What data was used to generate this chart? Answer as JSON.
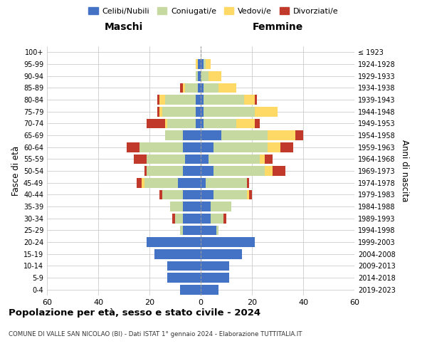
{
  "age_groups": [
    "0-4",
    "5-9",
    "10-14",
    "15-19",
    "20-24",
    "25-29",
    "30-34",
    "35-39",
    "40-44",
    "45-49",
    "50-54",
    "55-59",
    "60-64",
    "65-69",
    "70-74",
    "75-79",
    "80-84",
    "85-89",
    "90-94",
    "95-99",
    "100+"
  ],
  "birth_years": [
    "2019-2023",
    "2014-2018",
    "2009-2013",
    "2004-2008",
    "1999-2003",
    "1994-1998",
    "1989-1993",
    "1984-1988",
    "1979-1983",
    "1974-1978",
    "1969-1973",
    "1964-1968",
    "1959-1963",
    "1954-1958",
    "1949-1953",
    "1944-1948",
    "1939-1943",
    "1934-1938",
    "1929-1933",
    "1924-1928",
    "≤ 1923"
  ],
  "colors": {
    "celibe": "#4472c4",
    "coniugato": "#c5d9a0",
    "vedovo": "#ffd966",
    "divorziato": "#c0392b"
  },
  "males": {
    "celibe": [
      8,
      13,
      13,
      18,
      21,
      7,
      7,
      7,
      7,
      9,
      7,
      6,
      7,
      7,
      2,
      2,
      2,
      1,
      1,
      1,
      0
    ],
    "coniugato": [
      0,
      0,
      0,
      0,
      0,
      1,
      3,
      5,
      8,
      13,
      14,
      15,
      17,
      7,
      11,
      13,
      12,
      5,
      1,
      0,
      0
    ],
    "vedovo": [
      0,
      0,
      0,
      0,
      0,
      0,
      0,
      0,
      0,
      1,
      0,
      0,
      0,
      0,
      1,
      1,
      2,
      1,
      0,
      1,
      0
    ],
    "divorziato": [
      0,
      0,
      0,
      0,
      0,
      0,
      1,
      0,
      1,
      2,
      1,
      5,
      5,
      0,
      7,
      1,
      1,
      1,
      0,
      0,
      0
    ]
  },
  "females": {
    "nubile": [
      7,
      11,
      11,
      16,
      21,
      6,
      4,
      4,
      5,
      2,
      5,
      3,
      5,
      8,
      1,
      1,
      1,
      1,
      0,
      1,
      0
    ],
    "coniugata": [
      0,
      0,
      0,
      0,
      0,
      1,
      5,
      8,
      13,
      16,
      20,
      20,
      21,
      18,
      13,
      20,
      16,
      6,
      3,
      1,
      0
    ],
    "vedova": [
      0,
      0,
      0,
      0,
      0,
      0,
      0,
      0,
      1,
      0,
      3,
      2,
      5,
      11,
      7,
      9,
      4,
      7,
      5,
      2,
      0
    ],
    "divorziata": [
      0,
      0,
      0,
      0,
      0,
      0,
      1,
      0,
      1,
      1,
      5,
      3,
      5,
      3,
      2,
      0,
      1,
      0,
      0,
      0,
      0
    ]
  },
  "xlim": 60,
  "title_main": "Popolazione per età, sesso e stato civile - 2024",
  "title_sub": "COMUNE DI VALLE SAN NICOLAO (BI) - Dati ISTAT 1° gennaio 2024 - Elaborazione TUTTITALIA.IT",
  "legend_labels": [
    "Celibi/Nubili",
    "Coniugati/e",
    "Vedovi/e",
    "Divorziati/e"
  ],
  "ylabel_left": "Fasce di età",
  "ylabel_right": "Anni di nascita",
  "xlabel_left": "Maschi",
  "xlabel_right": "Femmine"
}
